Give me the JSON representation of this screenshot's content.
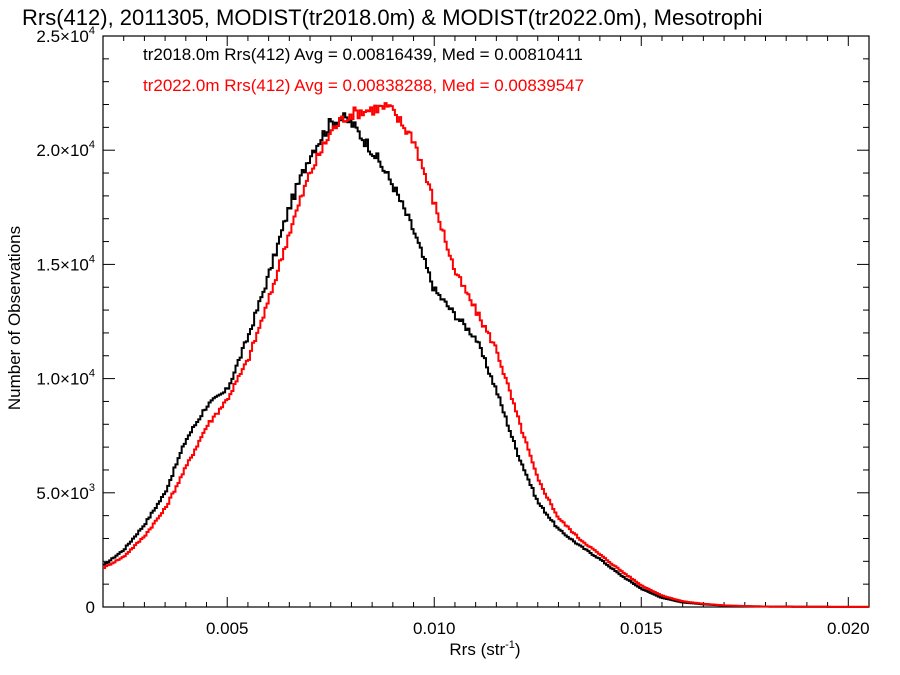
{
  "chart_data": {
    "type": "line",
    "title": "Rrs(412), 2011305, MODIST(tr2018.0m) & MODIST(tr2022.0m), Mesotrophi",
    "xlabel": {
      "base": "Rrs (str",
      "sup": "-1",
      "end": ")"
    },
    "ylabel": "Number of Observations",
    "xlim": [
      0.002,
      0.0205
    ],
    "ylim": [
      0,
      25000
    ],
    "x_ticks": [
      {
        "value": 0.005,
        "label": "0.005"
      },
      {
        "value": 0.01,
        "label": "0.010"
      },
      {
        "value": 0.015,
        "label": "0.015"
      },
      {
        "value": 0.02,
        "label": "0.020"
      }
    ],
    "y_ticks": [
      {
        "value": 0,
        "mant": "0",
        "exp": ""
      },
      {
        "value": 5000,
        "mant": "5.0×10",
        "exp": "3"
      },
      {
        "value": 10000,
        "mant": "1.0×10",
        "exp": "4"
      },
      {
        "value": 15000,
        "mant": "1.5×10",
        "exp": "4"
      },
      {
        "value": 20000,
        "mant": "2.0×10",
        "exp": "4"
      },
      {
        "value": 25000,
        "mant": "2.5×10",
        "exp": "4"
      }
    ],
    "grid": false,
    "legend_position": "top-left",
    "series": [
      {
        "label": "tr2018.0m Rrs(412) Avg = 0.00816439, Med = 0.00810411",
        "color": "#000000",
        "x": [
          0.002,
          0.0025,
          0.003,
          0.0035,
          0.004,
          0.0045,
          0.005,
          0.0055,
          0.006,
          0.0065,
          0.007,
          0.0075,
          0.0078,
          0.008,
          0.0085,
          0.009,
          0.0095,
          0.01,
          0.0105,
          0.011,
          0.0115,
          0.012,
          0.0125,
          0.013,
          0.0135,
          0.014,
          0.0145,
          0.015,
          0.0155,
          0.016,
          0.0165,
          0.017,
          0.0175,
          0.018,
          0.019,
          0.0205
        ],
        "y": [
          1800,
          2500,
          3600,
          5000,
          7300,
          8800,
          9500,
          11800,
          14500,
          17500,
          19800,
          21200,
          21400,
          21200,
          20000,
          18500,
          16500,
          13900,
          12800,
          11800,
          9500,
          6800,
          4600,
          3400,
          2700,
          2100,
          1400,
          800,
          400,
          200,
          120,
          60,
          35,
          20,
          10,
          5
        ]
      },
      {
        "label": "tr2022.0m Rrs(412) Avg = 0.00838288, Med = 0.00839547",
        "color": "#ff0000",
        "x": [
          0.002,
          0.0025,
          0.003,
          0.0035,
          0.004,
          0.0045,
          0.005,
          0.0055,
          0.006,
          0.0065,
          0.007,
          0.0075,
          0.0078,
          0.008,
          0.0085,
          0.0089,
          0.0095,
          0.01,
          0.0105,
          0.011,
          0.0115,
          0.012,
          0.0125,
          0.013,
          0.0135,
          0.014,
          0.0145,
          0.015,
          0.0155,
          0.016,
          0.0165,
          0.017,
          0.0175,
          0.018,
          0.019,
          0.0205
        ],
        "y": [
          1700,
          2200,
          3100,
          4300,
          6100,
          7900,
          9100,
          10800,
          13400,
          16400,
          19000,
          20800,
          21400,
          21600,
          21800,
          21900,
          20500,
          17700,
          14700,
          13000,
          11300,
          8400,
          5600,
          3900,
          3000,
          2300,
          1600,
          950,
          500,
          250,
          140,
          70,
          40,
          20,
          10,
          5
        ]
      }
    ]
  }
}
